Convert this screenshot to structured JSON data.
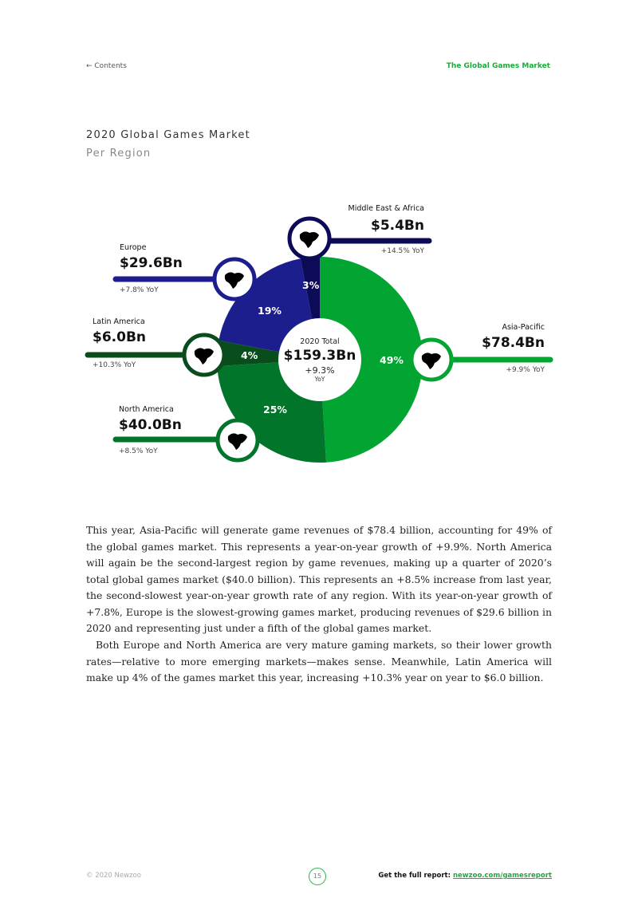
{
  "header": {
    "contents_link": "← Contents",
    "section": "The Global Games Market"
  },
  "figure": {
    "title": "2020 Global Games Market",
    "subtitle": "Per Region"
  },
  "chart_data": {
    "type": "pie",
    "title": "2020 Global Games Market",
    "subtitle": "Per Region",
    "center": {
      "label": "2020 Total",
      "value": "$159.3Bn",
      "growth": "+9.3%",
      "growth_unit": "YoY"
    },
    "slices": [
      {
        "name": "Asia-Pacific",
        "percent": 49,
        "pct_label": "49%",
        "value": "$78.4Bn",
        "yoy": "+9.9% YoY",
        "color": "#02a532"
      },
      {
        "name": "North America",
        "percent": 25,
        "pct_label": "25%",
        "value": "$40.0Bn",
        "yoy": "+8.5% YoY",
        "color": "#01752a"
      },
      {
        "name": "Latin America",
        "percent": 4,
        "pct_label": "4%",
        "value": "$6.0Bn",
        "yoy": "+10.3% YoY",
        "color": "#0a4d1c"
      },
      {
        "name": "Europe",
        "percent": 19,
        "pct_label": "19%",
        "value": "$29.6Bn",
        "yoy": "+7.8% YoY",
        "color": "#1d1e8e"
      },
      {
        "name": "Middle East & Africa",
        "percent": 3,
        "pct_label": "3%",
        "value": "$5.4Bn",
        "yoy": "+14.5% YoY",
        "color": "#0b0b57"
      }
    ]
  },
  "body": {
    "p1": "This year, Asia-Pacific will generate game revenues of $78.4 billion, accounting for 49% of the global games market. This represents a year-on-year growth of +9.9%. North America will again be the second-largest region by game revenues, making up a quarter of 2020’s total global games market ($40.0 billion). This represents an +8.5% increase from last year, the second-slowest year-on-year growth rate of any region. With its year-on-year growth of +7.8%, Europe is the slowest-growing games market, producing revenues of $29.6 billion in 2020 and representing just under a fifth of the global games market.",
    "p2": "Both Europe and North America are very mature gaming markets, so their lower growth rates—relative to more emerging markets—makes sense. Meanwhile, Latin America will make up 4% of the games market this year, increasing +10.3% year on year to $6.0 billion."
  },
  "footer": {
    "copyright": "© 2020 Newzoo",
    "page": "15",
    "cta": "Get the full report: ",
    "link": "newzoo.com/gamesreport"
  }
}
